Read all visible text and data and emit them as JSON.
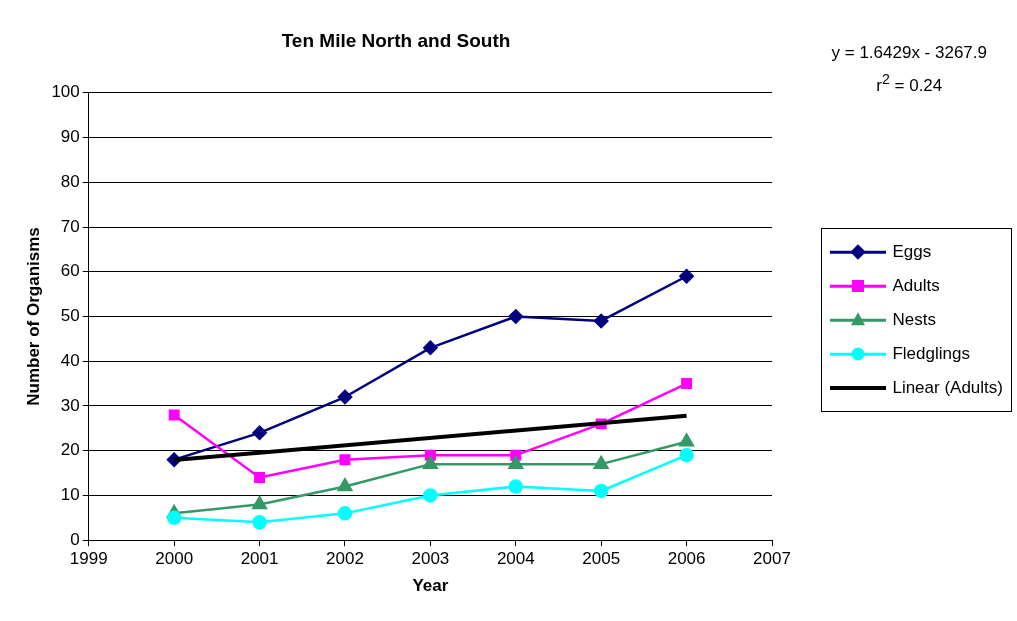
{
  "chart_data": {
    "type": "line",
    "title": "Ten Mile North and South",
    "xlabel": "Year",
    "ylabel": "Number of Organisms",
    "x": [
      2000,
      2001,
      2002,
      2003,
      2004,
      2005,
      2006
    ],
    "series": [
      {
        "name": "Eggs",
        "color": "#000080",
        "marker": "diamond",
        "values": [
          18,
          24,
          32,
          43,
          50,
          49,
          59
        ]
      },
      {
        "name": "Adults",
        "color": "#ff00ff",
        "marker": "square",
        "values": [
          28,
          14,
          18,
          19,
          19,
          26,
          35
        ]
      },
      {
        "name": "Nests",
        "color": "#339966",
        "marker": "triangle",
        "values": [
          6,
          8,
          12,
          17,
          17,
          17,
          22
        ]
      },
      {
        "name": "Fledglings",
        "color": "#00ffff",
        "marker": "circle",
        "values": [
          5,
          4,
          6,
          10,
          12,
          11,
          19
        ]
      },
      {
        "name": "Linear (Adults)",
        "color": "#000000",
        "marker": "none",
        "x": [
          2000,
          2006
        ],
        "values": [
          17.9,
          27.8
        ]
      }
    ],
    "xlim": [
      1999,
      2007
    ],
    "xticks": [
      1999,
      2000,
      2001,
      2002,
      2003,
      2004,
      2005,
      2006,
      2007
    ],
    "ylim": [
      0,
      100
    ],
    "yticks": [
      0,
      10,
      20,
      30,
      40,
      50,
      60,
      70,
      80,
      90,
      100
    ],
    "grid": "y",
    "legend": "right",
    "annotations": [
      "y = 1.6429x - 3267.9",
      "r$^{2}$ = 0.24"
    ]
  }
}
